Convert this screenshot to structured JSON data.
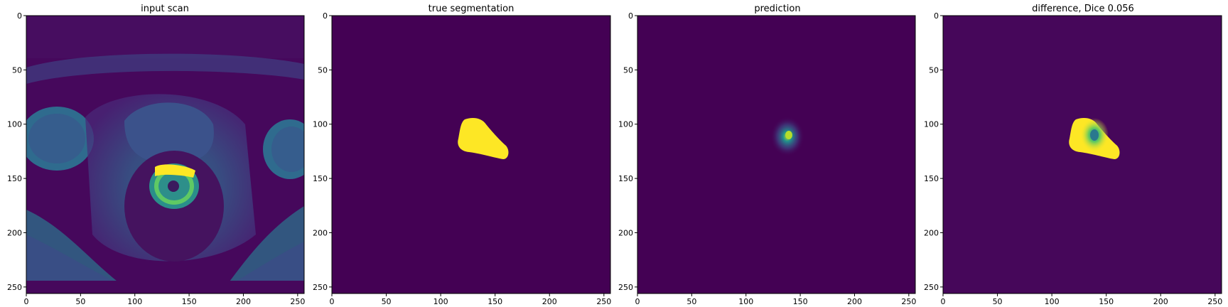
{
  "figure": {
    "panels": [
      {
        "id": "input-scan",
        "title": "input scan",
        "image": "axial pelvic MRI scan",
        "xticks": [
          "0",
          "50",
          "100",
          "150",
          "200",
          "250"
        ],
        "yticks": [
          "0",
          "50",
          "100",
          "150",
          "200",
          "250"
        ]
      },
      {
        "id": "true-segmentation",
        "title": "true segmentation",
        "image": "binary mask (yellow region on purple background)",
        "xticks": [
          "0",
          "50",
          "100",
          "150",
          "200",
          "250"
        ],
        "yticks": [
          "0",
          "50",
          "100",
          "150",
          "200",
          "250"
        ]
      },
      {
        "id": "prediction",
        "title": "prediction",
        "image": "faint predicted mask",
        "xticks": [
          "0",
          "50",
          "100",
          "150",
          "200",
          "250"
        ],
        "yticks": [
          "0",
          "50",
          "100",
          "150",
          "200",
          "250"
        ]
      },
      {
        "id": "difference",
        "title": "difference, Dice 0.056",
        "image": "difference map",
        "xticks": [
          "0",
          "50",
          "100",
          "150",
          "200",
          "250"
        ],
        "yticks": [
          "0",
          "50",
          "100",
          "150",
          "200",
          "250"
        ]
      }
    ],
    "axis": {
      "xlim": [
        0,
        256
      ],
      "ylim": [
        256,
        0
      ],
      "tick_values": [
        0,
        50,
        100,
        150,
        200,
        250
      ]
    },
    "colormap": "viridis",
    "colors": {
      "viridis_dark": "#440154",
      "viridis_dark_alt": "#46075a",
      "viridis_mid": "#21918c",
      "viridis_teal": "#2a788e",
      "viridis_green": "#5ec962",
      "viridis_yellow": "#fde725"
    }
  }
}
